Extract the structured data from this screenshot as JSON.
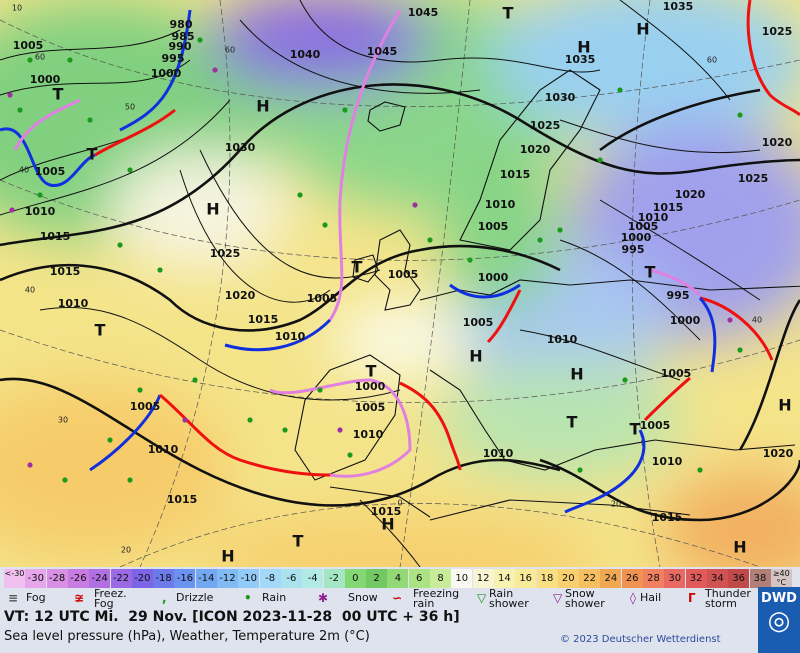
{
  "map": {
    "pressure_labels": [
      "1005",
      "1000",
      "1005",
      "1010",
      "1015",
      "1015",
      "1010",
      "980",
      "985",
      "990",
      "995",
      "1000",
      "1040",
      "1045",
      "1045",
      "1035",
      "1035",
      "1025",
      "1030",
      "1030",
      "1025",
      "1020",
      "1015",
      "1010",
      "1005",
      "1000",
      "1005",
      "1020",
      "1025",
      "1020",
      "1015",
      "1010",
      "1005",
      "1000",
      "995",
      "995",
      "1000",
      "1010",
      "1005",
      "1005",
      "1010",
      "1020",
      "1025",
      "1020",
      "1015",
      "1010",
      "1005",
      "1005",
      "1000",
      "1005",
      "1010",
      "1005",
      "1010",
      "1015",
      "1015",
      "1010",
      "1015"
    ],
    "high_labels": [
      "H",
      "H",
      "H",
      "H",
      "H",
      "H",
      "H",
      "H",
      "H",
      "H"
    ],
    "low_labels": [
      "T",
      "T",
      "T",
      "T",
      "T",
      "T",
      "T",
      "T",
      "T",
      "T"
    ],
    "grid_labels": [
      "10",
      "60",
      "60",
      "50",
      "40",
      "40",
      "30",
      "20",
      "60",
      "40",
      "20",
      "0"
    ]
  },
  "legend": {
    "temperature_scale": [
      {
        "label": "<-30",
        "color": "#f0c0f0"
      },
      {
        "label": "-30",
        "color": "#e6a6ea"
      },
      {
        "label": "-28",
        "color": "#d890e4"
      },
      {
        "label": "-26",
        "color": "#c87ce2"
      },
      {
        "label": "-24",
        "color": "#b070e2"
      },
      {
        "label": "-22",
        "color": "#9a6ae4"
      },
      {
        "label": "-20",
        "color": "#7c64e6"
      },
      {
        "label": "-18",
        "color": "#6c7aea"
      },
      {
        "label": "-16",
        "color": "#6a92f0"
      },
      {
        "label": "-14",
        "color": "#72a8f2"
      },
      {
        "label": "-12",
        "color": "#82baf4"
      },
      {
        "label": "-10",
        "color": "#92caf8"
      },
      {
        "label": "-8",
        "color": "#a2d8f8"
      },
      {
        "label": "-6",
        "color": "#aae2f0"
      },
      {
        "label": "-4",
        "color": "#b2eae6"
      },
      {
        "label": "-2",
        "color": "#a4e6c4"
      },
      {
        "label": "0",
        "color": "#84d874"
      },
      {
        "label": "2",
        "color": "#72c862"
      },
      {
        "label": "4",
        "color": "#92d874"
      },
      {
        "label": "6",
        "color": "#aae284"
      },
      {
        "label": "8",
        "color": "#c8ec9a"
      },
      {
        "label": "10",
        "color": "#fafaf2"
      },
      {
        "label": "12",
        "color": "#f8f6d2"
      },
      {
        "label": "14",
        "color": "#f8f2b2"
      },
      {
        "label": "16",
        "color": "#f8ea98"
      },
      {
        "label": "18",
        "color": "#f8e082"
      },
      {
        "label": "20",
        "color": "#f8d070"
      },
      {
        "label": "22",
        "color": "#f6c060"
      },
      {
        "label": "24",
        "color": "#f2a852"
      },
      {
        "label": "26",
        "color": "#f09252"
      },
      {
        "label": "28",
        "color": "#f08060"
      },
      {
        "label": "30",
        "color": "#e86a62"
      },
      {
        "label": "32",
        "color": "#e05a5a"
      },
      {
        "label": "34",
        "color": "#d05252"
      },
      {
        "label": "36",
        "color": "#c04a4a"
      },
      {
        "label": "38",
        "color": "#b08078"
      },
      {
        "label": "≥40 °C",
        "color": "#d4c4c4"
      }
    ],
    "weather": [
      "Fog",
      "Freez. Fog",
      "Drizzle",
      "Rain",
      "Snow",
      "Freezing rain",
      "Rain shower",
      "Snow shower",
      "Hail",
      "Thunder storm"
    ]
  },
  "footer": {
    "valid_time": "VT: 12 UTC Mi.  29 Nov. [ICON 2023-11-28  00 UTC + 36 h]",
    "description": "Sea level pressure (hPa), Weather, Temperature 2m (°C)",
    "copyright": "© 2023 Deutscher Wetterdienst",
    "logo": "DWD"
  }
}
